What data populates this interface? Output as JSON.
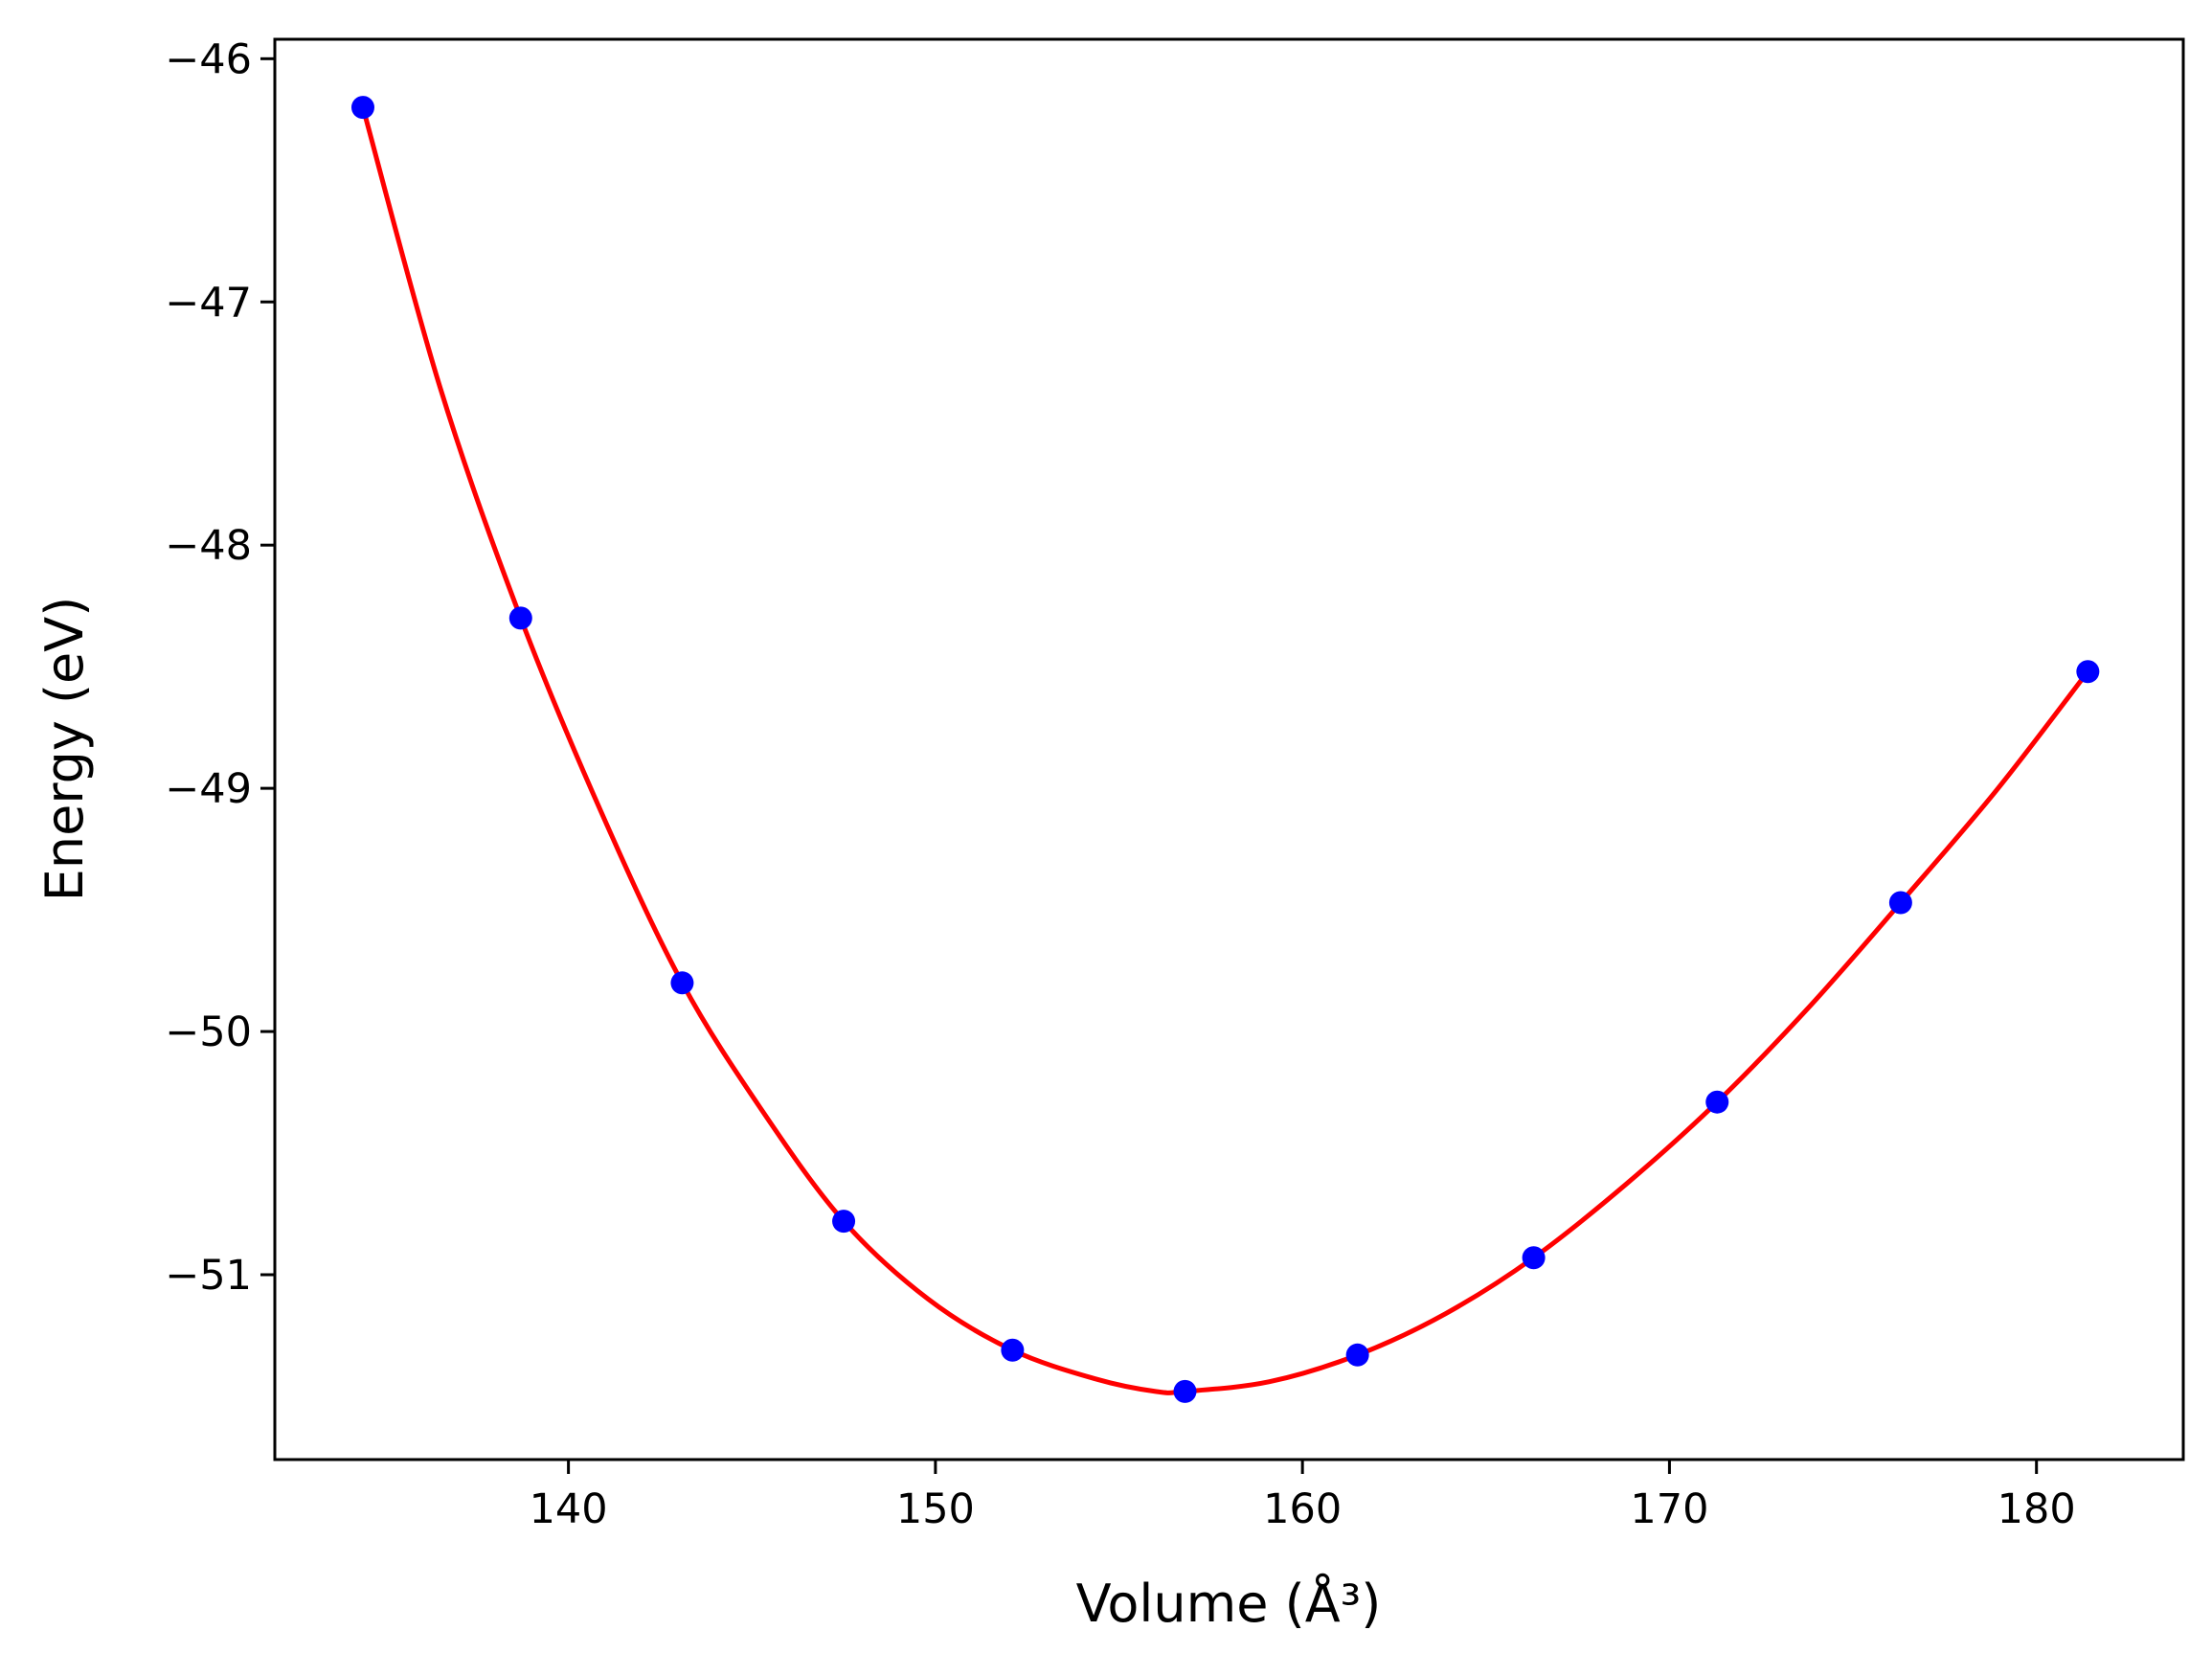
{
  "chart_data": {
    "type": "scatter",
    "title": "",
    "xlabel": "Volume (Å³)",
    "ylabel": "Energy (eV)",
    "xlim": [
      132.0,
      184.0
    ],
    "ylim": [
      -51.76,
      -45.92
    ],
    "xticks": [
      140,
      150,
      160,
      170,
      180
    ],
    "yticks": [
      -46,
      -47,
      -48,
      -49,
      -50,
      -51
    ],
    "xtick_labels": [
      "140",
      "150",
      "160",
      "170",
      "180"
    ],
    "ytick_labels": [
      "−46",
      "−47",
      "−48",
      "−49",
      "−50",
      "−51"
    ],
    "grid": false,
    "legend": "none",
    "series": [
      {
        "kind": "points",
        "color": "#0000ff",
        "x": [
          134.4,
          138.7,
          143.1,
          147.5,
          152.1,
          156.8,
          161.5,
          166.3,
          171.3,
          176.3,
          181.4
        ],
        "y": [
          -46.2,
          -48.3,
          -49.8,
          -50.78,
          -51.31,
          -51.48,
          -51.33,
          -50.93,
          -50.29,
          -49.47,
          -48.52
        ]
      },
      {
        "kind": "fit-curve",
        "color": "#ff0000",
        "x": [
          134.4,
          136.5,
          138.7,
          140.9,
          143.1,
          145.3,
          147.5,
          149.8,
          152.1,
          154.4,
          156.0,
          156.8,
          159.1,
          161.5,
          163.9,
          166.3,
          168.8,
          171.3,
          173.8,
          176.3,
          178.9,
          181.4
        ],
        "y": [
          -46.2,
          -47.35,
          -48.3,
          -49.1,
          -49.8,
          -50.33,
          -50.78,
          -51.1,
          -51.31,
          -51.43,
          -51.48,
          -51.48,
          -51.44,
          -51.33,
          -51.16,
          -50.93,
          -50.63,
          -50.29,
          -49.9,
          -49.47,
          -49.01,
          -48.52
        ]
      }
    ]
  }
}
